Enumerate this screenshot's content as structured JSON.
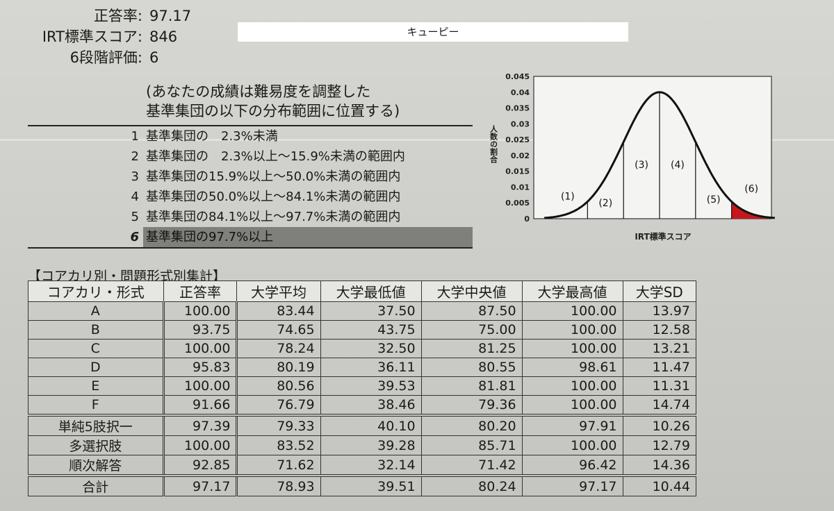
{
  "summary": [
    {
      "label": "正答率:",
      "value": "97.17"
    },
    {
      "label": "IRT標準スコア:",
      "value": "846"
    },
    {
      "label": "6段階評価:",
      "value": "6"
    }
  ],
  "name_box": "キューピー",
  "explain": {
    "note_line1": "(あなたの成績は難易度を調整した",
    "note_line2": "基準集団の以下の分布範囲に位置する)",
    "levels": [
      {
        "num": "1",
        "text": "基準集団の　2.3%未満"
      },
      {
        "num": "2",
        "text": "基準集団の　2.3%以上～15.9%未満の範囲内"
      },
      {
        "num": "3",
        "text": "基準集団の15.9%以上～50.0%未満の範囲内"
      },
      {
        "num": "4",
        "text": "基準集団の50.0%以上～84.1%未満の範囲内"
      },
      {
        "num": "5",
        "text": "基準集団の84.1%以上～97.7%未満の範囲内"
      },
      {
        "num": "6",
        "text": "基準集団の97.7%以上"
      }
    ],
    "current_level_index": 5
  },
  "chart_data": {
    "type": "area",
    "xlabel": "IRT標準スコア",
    "ylabel": "人数の割合",
    "yticks": [
      "0",
      "0.005",
      "0.01",
      "0.015",
      "0.02",
      "0.025",
      "0.03",
      "0.035",
      "0.04",
      "0.045"
    ],
    "ylim": [
      0,
      0.045
    ],
    "peak": 0.04,
    "region_labels": [
      "(1)",
      "(2)",
      "(3)",
      "(4)",
      "(5)",
      "(6)"
    ],
    "highlight_region": "(6)",
    "highlight_color": "#c8161d"
  },
  "table": {
    "title": "【コアカリ別・問題形式別集計】",
    "headers": [
      "コアカリ・形式",
      "正答率",
      "大学平均",
      "大学最低値",
      "大学中央値",
      "大学最高値",
      "大学SD"
    ],
    "group1": [
      [
        "A",
        "100.00",
        "83.44",
        "37.50",
        "87.50",
        "100.00",
        "13.97"
      ],
      [
        "B",
        "93.75",
        "74.65",
        "43.75",
        "75.00",
        "100.00",
        "12.58"
      ],
      [
        "C",
        "100.00",
        "78.24",
        "32.50",
        "81.25",
        "100.00",
        "13.21"
      ],
      [
        "D",
        "95.83",
        "80.19",
        "36.11",
        "80.55",
        "98.61",
        "11.47"
      ],
      [
        "E",
        "100.00",
        "80.56",
        "39.53",
        "81.81",
        "100.00",
        "11.31"
      ],
      [
        "F",
        "91.66",
        "76.79",
        "38.46",
        "79.36",
        "100.00",
        "14.74"
      ]
    ],
    "group2": [
      [
        "単純5肢択一",
        "97.39",
        "79.33",
        "40.10",
        "80.20",
        "97.91",
        "10.26"
      ],
      [
        "多選択肢",
        "100.00",
        "83.52",
        "39.28",
        "85.71",
        "100.00",
        "12.79"
      ],
      [
        "順次解答",
        "92.85",
        "71.62",
        "32.14",
        "71.42",
        "96.42",
        "14.36"
      ]
    ],
    "total": [
      "合計",
      "97.17",
      "78.93",
      "39.51",
      "80.24",
      "97.17",
      "10.44"
    ]
  }
}
